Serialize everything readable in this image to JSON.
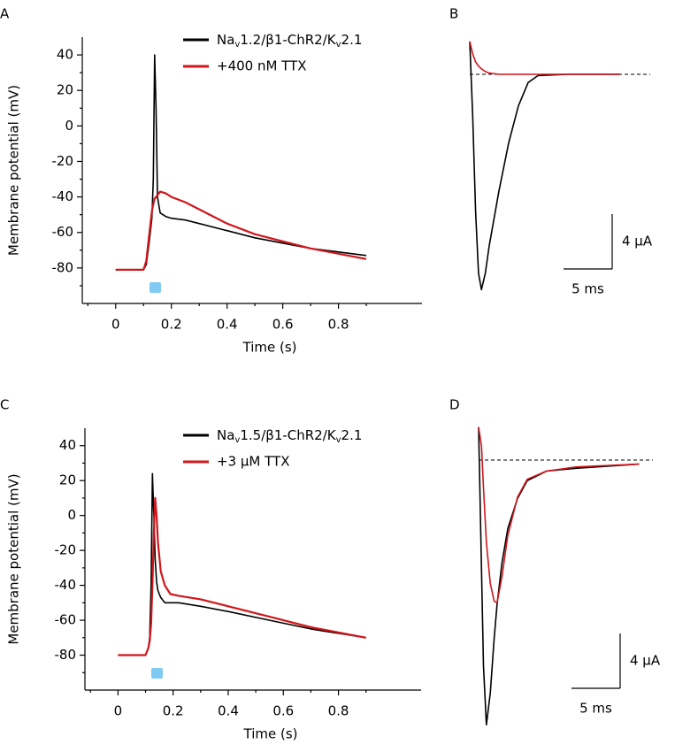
{
  "chart_data": [
    {
      "panel": "A",
      "type": "line",
      "x_label": "Time (s)",
      "y_label": "Membrane potential (mV)",
      "x": [
        0,
        0.05,
        0.1,
        0.11,
        0.12,
        0.13,
        0.135,
        0.14,
        0.145,
        0.15,
        0.16,
        0.18,
        0.2,
        0.25,
        0.3,
        0.4,
        0.5,
        0.6,
        0.7,
        0.8,
        0.9
      ],
      "xlim": [
        -0.12,
        1.1
      ],
      "xticks": [
        0,
        0.2,
        0.4,
        0.6,
        0.8
      ],
      "xticks_minor": [
        -0.1,
        0.1,
        0.3,
        0.5,
        0.7,
        0.9
      ],
      "ylim": [
        -100,
        50
      ],
      "yticks": [
        -80,
        -60,
        -40,
        -20,
        0,
        20,
        40
      ],
      "yticks_minor": [
        -90,
        -70,
        -50,
        -30,
        -10,
        10,
        30
      ],
      "series": [
        {
          "name": "Nav1.2/β1-ChR2/Kv2.1",
          "color": "#000000",
          "values": [
            -81,
            -81,
            -81,
            -78,
            -66,
            -52,
            -30,
            40,
            10,
            -40,
            -49,
            -51,
            -52,
            -53,
            -55,
            -59,
            -63,
            -66,
            -69,
            -71,
            -73
          ]
        },
        {
          "name": "+400 nM TTX",
          "color": "#d0161b",
          "values": [
            -81,
            -81,
            -81,
            -76,
            -62,
            -48,
            -44,
            -41,
            -40,
            -39,
            -37,
            -38,
            -40,
            -43,
            -47,
            -55,
            -61,
            -65,
            -69,
            -72,
            -75
          ]
        }
      ]
    },
    {
      "panel": "B",
      "type": "trace",
      "x": [
        0,
        0.3,
        0.6,
        0.9,
        1.2,
        1.6,
        2,
        3,
        4,
        5,
        6,
        7,
        10,
        15.4
      ],
      "baseline": 0,
      "series": [
        {
          "color": "#000000",
          "values": [
            2.4,
            -3,
            -10,
            -14.5,
            -15.7,
            -14.5,
            -12.5,
            -8.5,
            -5,
            -2.3,
            -0.6,
            -0.1,
            0,
            0
          ]
        },
        {
          "color": "#d0161b",
          "values": [
            2.4,
            1.5,
            0.9,
            0.6,
            0.4,
            0.2,
            0.1,
            0,
            0,
            0,
            0,
            0,
            0,
            0
          ]
        }
      ],
      "scale_bar": {
        "x": {
          "value": 5,
          "label": "5 ms"
        },
        "y": {
          "value": 4,
          "label": "4 µA"
        }
      }
    },
    {
      "panel": "C",
      "type": "line",
      "x_label": "Time (s)",
      "y_label": "Membrane potential (mV)",
      "x": [
        0,
        0.05,
        0.1,
        0.11,
        0.115,
        0.12,
        0.125,
        0.13,
        0.135,
        0.14,
        0.145,
        0.155,
        0.17,
        0.19,
        0.22,
        0.3,
        0.4,
        0.55,
        0.7,
        0.9
      ],
      "xlim": [
        -0.12,
        1.1
      ],
      "xticks": [
        0,
        0.2,
        0.4,
        0.6,
        0.8
      ],
      "xticks_minor": [
        -0.1,
        0.1,
        0.3,
        0.5,
        0.7,
        0.9
      ],
      "ylim": [
        -100,
        50
      ],
      "yticks": [
        -80,
        -60,
        -40,
        -20,
        0,
        20,
        40
      ],
      "yticks_minor": [
        -90,
        -70,
        -50,
        -30,
        -10,
        10,
        30
      ],
      "series": [
        {
          "name": "Nav1.5/β1-ChR2/Kv2.1",
          "color": "#000000",
          "values": [
            -80,
            -80,
            -80,
            -76,
            -70,
            -40,
            24,
            0,
            -25,
            -38,
            -43,
            -47,
            -50,
            -50,
            -50,
            -52,
            -55,
            -60,
            -65,
            -70
          ]
        },
        {
          "name": "+3 µM TTX",
          "color": "#d0161b",
          "values": [
            -80,
            -80,
            -80,
            -76,
            -72,
            -62,
            -40,
            -10,
            10,
            0,
            -15,
            -32,
            -40,
            -45,
            -46,
            -48,
            -52,
            -58,
            -64,
            -70
          ]
        }
      ]
    },
    {
      "panel": "D",
      "type": "trace",
      "x": [
        0,
        0.3,
        0.5,
        0.8,
        1.2,
        1.6,
        1.9,
        2.4,
        3,
        4,
        5,
        7,
        10,
        16.5
      ],
      "baseline": 0,
      "series": [
        {
          "color": "#000000",
          "values": [
            2.4,
            -8,
            -15,
            -19.3,
            -17,
            -13,
            -10.5,
            -7.5,
            -5,
            -2.8,
            -1.5,
            -0.8,
            -0.6,
            -0.3
          ]
        },
        {
          "color": "#d0161b",
          "values": [
            2.4,
            1,
            -2,
            -6,
            -9,
            -10.3,
            -10.4,
            -8.5,
            -5.5,
            -2.7,
            -1.4,
            -0.8,
            -0.5,
            -0.3
          ]
        }
      ],
      "scale_bar": {
        "x": {
          "value": 5,
          "label": "5 ms"
        },
        "y": {
          "value": 4,
          "label": "4 µA"
        }
      }
    }
  ]
}
